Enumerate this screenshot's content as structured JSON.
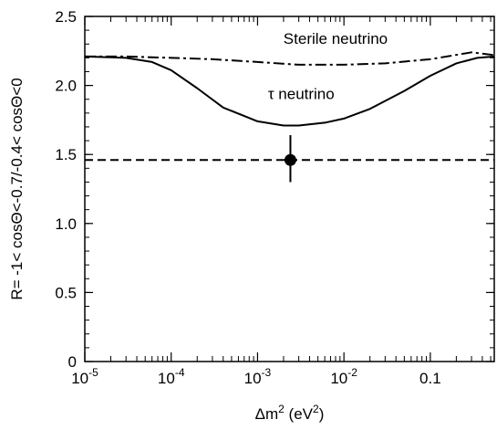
{
  "chart_data": {
    "type": "line",
    "x_scale": "log",
    "xlim": [
      1e-05,
      0.55
    ],
    "ylim": [
      0,
      2.5
    ],
    "xlabel": {
      "main": "Δm",
      "sup1": "2",
      "mid": " (eV",
      "sup2": "2",
      "end": ")"
    },
    "ylabel": "R= -1< cosΘ<-0.7/-0.4< cosΘ<0",
    "x_ticks": [
      {
        "value": 1e-05,
        "base": "10",
        "exp": "-5"
      },
      {
        "value": 0.0001,
        "base": "10",
        "exp": "-4"
      },
      {
        "value": 0.001,
        "base": "10",
        "exp": "-3"
      },
      {
        "value": 0.01,
        "base": "10",
        "exp": "-2"
      },
      {
        "value": 0.1,
        "base": "0.1",
        "exp": ""
      }
    ],
    "y_ticks": [
      {
        "value": 0,
        "label": "0"
      },
      {
        "value": 0.5,
        "label": "0.5"
      },
      {
        "value": 1.0,
        "label": "1.0"
      },
      {
        "value": 1.5,
        "label": "1.5"
      },
      {
        "value": 2.0,
        "label": "2.0"
      },
      {
        "value": 2.5,
        "label": "2.5"
      }
    ],
    "grid": false,
    "series": [
      {
        "name": "Sterile neutrino",
        "style": "dash-dot",
        "x": [
          1e-05,
          3e-05,
          0.0001,
          0.0003,
          0.001,
          0.003,
          0.01,
          0.03,
          0.1,
          0.3,
          0.55
        ],
        "y": [
          2.21,
          2.21,
          2.2,
          2.19,
          2.17,
          2.15,
          2.15,
          2.16,
          2.19,
          2.24,
          2.22
        ]
      },
      {
        "name": "τ neutrino",
        "style": "solid",
        "x": [
          1e-05,
          3e-05,
          6e-05,
          0.0001,
          0.0002,
          0.0004,
          0.001,
          0.002,
          0.003,
          0.006,
          0.01,
          0.02,
          0.05,
          0.1,
          0.2,
          0.35,
          0.55
        ],
        "y": [
          2.21,
          2.2,
          2.17,
          2.11,
          1.98,
          1.84,
          1.74,
          1.71,
          1.71,
          1.73,
          1.76,
          1.83,
          1.96,
          2.07,
          2.16,
          2.2,
          2.21
        ]
      },
      {
        "name": "",
        "style": "dashed",
        "x": [
          1e-05,
          0.55
        ],
        "y": [
          1.46,
          1.46
        ]
      }
    ],
    "data_point": {
      "x": 0.0024,
      "y": 1.46,
      "y_err_low": 1.3,
      "y_err_high": 1.64
    },
    "annotations": [
      {
        "text": "Sterile neutrino",
        "x": 0.008,
        "y": 2.3
      },
      {
        "text": "τ neutrino",
        "x": 0.0032,
        "y": 1.9
      }
    ]
  }
}
